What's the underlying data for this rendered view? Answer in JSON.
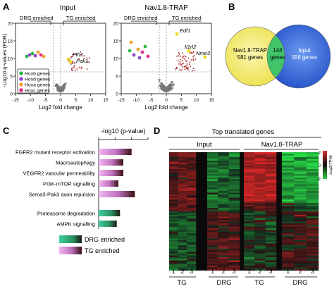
{
  "panels": {
    "a": {
      "letter": "A",
      "y_axis_label": "-Log10 q-values (FDR)",
      "x_axis_label": "Log2 fold change",
      "left": {
        "title": "Input",
        "drg_label": "DRG enriched",
        "tg_label": "TG enriched",
        "genes": [
          "Fth1",
          "Pak1"
        ],
        "x_ticks": [
          "-15",
          "-10",
          "-5",
          "0",
          "5",
          "10",
          "15"
        ],
        "y_ticks": [
          "0",
          "5",
          "10",
          "15",
          "20"
        ]
      },
      "right": {
        "title": "Nav1.8-TRAP",
        "drg_label": "DRG enriched",
        "tg_label": "TG enriched",
        "genes": [
          "Edf1",
          "Il1rl2",
          "Nme3"
        ],
        "x_ticks": [
          "-15",
          "-10",
          "-5",
          "0",
          "5",
          "10",
          "15"
        ],
        "y_ticks": [
          "0",
          "5",
          "10",
          "15",
          "20"
        ]
      },
      "legend": [
        {
          "label": "Hoxb genes",
          "color": "#2db84a"
        },
        {
          "label": "Hoxd genes",
          "color": "#8e44c8"
        },
        {
          "label": "Hoxa genes",
          "color": "#f0a030"
        },
        {
          "label": "Hoxc genes",
          "color": "#e0308c"
        }
      ]
    },
    "b": {
      "letter": "B",
      "left_set": "Nav1.8-TRAP",
      "left_count": "581 genes",
      "overlap_count": "144",
      "overlap_unit": "genes",
      "right_set": "Input",
      "right_count": "556 genes",
      "left_color": "#f5ec6e",
      "right_color": "#3a6be0",
      "overlap_color": "#3fc46a"
    },
    "c": {
      "letter": "C",
      "axis_title": "-log10 (p-value)",
      "x_ticks": [
        "0",
        "1",
        "2",
        "3"
      ],
      "legend": [
        {
          "label": "DRG enriched",
          "color": "#2fbf8a"
        },
        {
          "label": "TG enriched",
          "color": "#d98ad6"
        }
      ]
    },
    "d": {
      "letter": "D",
      "title": "Top translated genes",
      "group_left": "Input",
      "group_right": "Nav1.8-TRAP",
      "columns": [
        "1",
        "2",
        "3",
        "1",
        "2",
        "3",
        "1",
        "2",
        "3",
        "1",
        "2",
        "3"
      ],
      "bottom_labels": [
        "TG",
        "DRG",
        "TG",
        "DRG"
      ],
      "scale_max": "2",
      "scale_mid": "0",
      "scale_min": "-2",
      "scale_label": "Log2(TPM)"
    }
  },
  "chart_data": {
    "type": "bar",
    "title": "",
    "xlabel": "-log10 (p-value)",
    "ylabel": "",
    "xlim": [
      0,
      3
    ],
    "categories": [
      "FGFR2 mutant receptor activation",
      "Macroautophagy",
      "VEGFR2 vascular permeability",
      "PI3K-mTOR signalling",
      "Sema3-Pak3 axon repulsion",
      "Proteasome degradation",
      "AMPK signalling"
    ],
    "values": [
      2.0,
      1.5,
      1.5,
      1.2,
      2.2,
      1.3,
      1.1
    ],
    "groups": [
      "TG enriched",
      "TG enriched",
      "TG enriched",
      "TG enriched",
      "TG enriched",
      "DRG enriched",
      "DRG enriched"
    ]
  }
}
